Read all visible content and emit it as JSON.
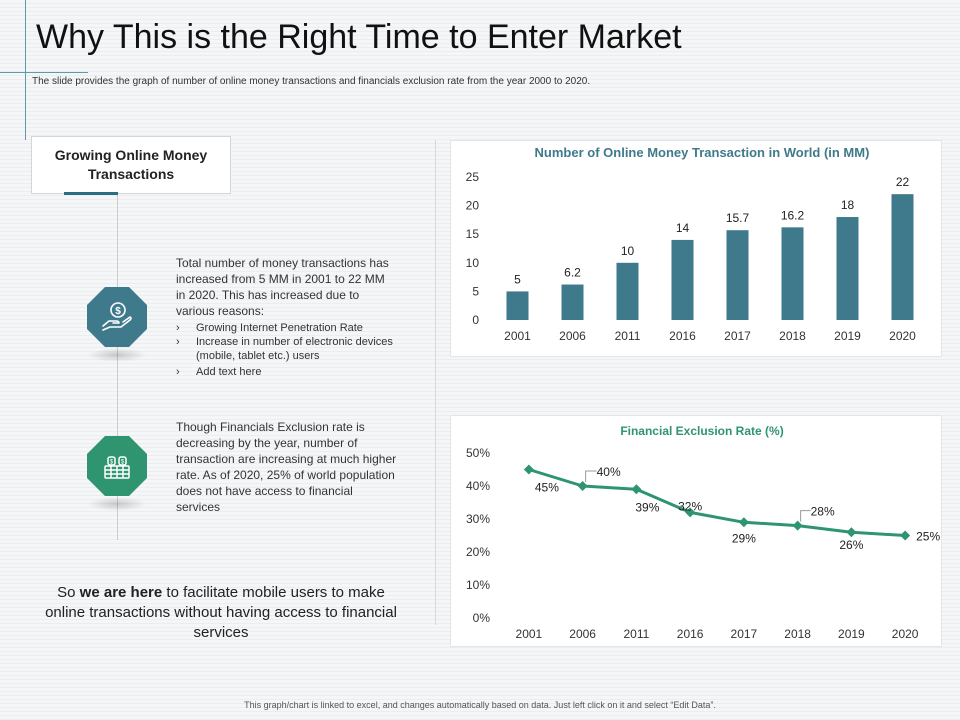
{
  "slide": {
    "title": "Why This is the Right Time to Enter Market",
    "subtitle": "The slide provides the graph of number of online money transactions and financials exclusion rate from the year 2000 to 2020.",
    "footer": "This graph/chart is linked to excel, and changes automatically based on data. Just left click on it and select “Edit Data”."
  },
  "left": {
    "heading": "Growing Online Money Transactions",
    "block1": {
      "text": "Total number of money transactions has increased from 5 MM in 2001 to 22 MM in 2020. This has increased due to various  reasons:",
      "bullets": [
        "Growing Internet Penetration Rate",
        "Increase in number of electronic devices (mobile, tablet etc.) users",
        "Add text here"
      ]
    },
    "block2": {
      "text": "Though Financials Exclusion rate is decreasing by the year, number of transaction are increasing at much higher rate. As of 2020, 25% of world population does not have access to financial services"
    },
    "closing": {
      "pre": "So ",
      "bold": "we are here",
      "post": " to facilitate mobile users to make online transactions without having access to financial services"
    }
  },
  "icons": {
    "block1_icon": "money-hand-icon",
    "block2_icon": "cash-wallet-icon",
    "block1_color": "#3f7a8c",
    "block2_color": "#2f9470"
  },
  "chart_data": [
    {
      "type": "bar",
      "title": "Number of Online Money Transaction in World (in MM)",
      "categories": [
        "2001",
        "2006",
        "2011",
        "2016",
        "2017",
        "2018",
        "2019",
        "2020"
      ],
      "values": [
        5,
        6.2,
        10,
        14,
        15.7,
        16.2,
        18,
        22
      ],
      "labels": [
        "5",
        "6.2",
        "10",
        "14",
        "15.7",
        "16.2",
        "18",
        "22"
      ],
      "yticks": [
        "0",
        "5",
        "10",
        "15",
        "20",
        "25"
      ],
      "ylim": [
        0,
        25
      ],
      "xlabel": "",
      "ylabel": "",
      "color": "#3f7a8c",
      "title_color": "#3f7a8c"
    },
    {
      "type": "line",
      "title": "Financial Exclusion Rate (%)",
      "categories": [
        "2001",
        "2006",
        "2011",
        "2016",
        "2017",
        "2018",
        "2019",
        "2020"
      ],
      "values": [
        45,
        40,
        39,
        32,
        29,
        28,
        26,
        25
      ],
      "labels": [
        "45%",
        "40%",
        "39%",
        "32%",
        "29%",
        "28%",
        "26%",
        "25%"
      ],
      "yticks": [
        "0%",
        "10%",
        "20%",
        "30%",
        "40%",
        "50%"
      ],
      "ylim": [
        0,
        50
      ],
      "xlabel": "",
      "ylabel": "",
      "color": "#2f9470",
      "title_color": "#2f9470"
    }
  ]
}
